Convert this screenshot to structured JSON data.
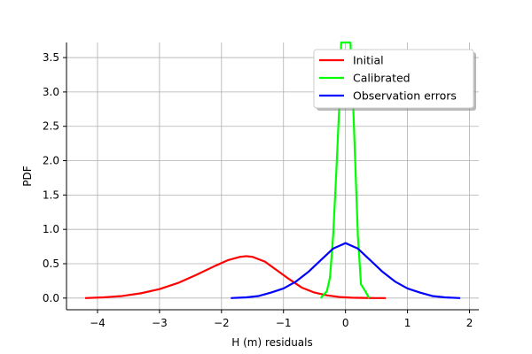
{
  "chart_data": {
    "type": "line",
    "title": "",
    "xlabel": "H (m) residuals",
    "ylabel": "PDF",
    "xlim": [
      -4.5,
      2.15
    ],
    "ylim": [
      -0.17,
      3.72
    ],
    "xticks": [
      -4,
      -3,
      -2,
      -1,
      0,
      1,
      2
    ],
    "yticks": [
      0.0,
      0.5,
      1.0,
      1.5,
      2.0,
      2.5,
      3.0,
      3.5
    ],
    "xtick_labels": [
      "−4",
      "−3",
      "−2",
      "−1",
      "0",
      "1",
      "2"
    ],
    "ytick_labels": [
      "0.0",
      "0.5",
      "1.0",
      "1.5",
      "2.0",
      "2.5",
      "3.0",
      "3.5"
    ],
    "grid": true,
    "legend_position": "top-right",
    "series": [
      {
        "name": "Initial",
        "color": "#ff0000",
        "x": [
          -4.2,
          -3.9,
          -3.6,
          -3.3,
          -3.0,
          -2.7,
          -2.4,
          -2.1,
          -1.9,
          -1.7,
          -1.6,
          -1.5,
          -1.3,
          -1.1,
          -0.9,
          -0.7,
          -0.5,
          -0.3,
          -0.1,
          0.1,
          0.3,
          0.5,
          0.65
        ],
        "y": [
          0.0,
          0.01,
          0.03,
          0.07,
          0.13,
          0.22,
          0.34,
          0.47,
          0.55,
          0.6,
          0.61,
          0.6,
          0.53,
          0.4,
          0.27,
          0.15,
          0.08,
          0.04,
          0.015,
          0.005,
          0.002,
          0.0,
          0.0
        ]
      },
      {
        "name": "Calibrated",
        "color": "#00ff00",
        "x": [
          -0.4,
          -0.3,
          -0.25,
          -0.2,
          -0.15,
          -0.1,
          -0.07,
          -0.04,
          0.0,
          0.04,
          0.08,
          0.12,
          0.16,
          0.2,
          0.25,
          0.32,
          0.38
        ],
        "y": [
          0.0,
          0.1,
          0.3,
          0.9,
          1.8,
          2.8,
          3.72,
          3.72,
          3.72,
          3.72,
          3.72,
          2.9,
          1.9,
          0.9,
          0.2,
          0.1,
          0.0
        ]
      },
      {
        "name": "Observation errors",
        "color": "#0000ff",
        "x": [
          -1.85,
          -1.6,
          -1.4,
          -1.2,
          -1.0,
          -0.8,
          -0.6,
          -0.4,
          -0.2,
          0.0,
          0.2,
          0.4,
          0.6,
          0.8,
          1.0,
          1.2,
          1.4,
          1.6,
          1.85
        ],
        "y": [
          0.0,
          0.01,
          0.03,
          0.08,
          0.14,
          0.24,
          0.38,
          0.55,
          0.72,
          0.8,
          0.72,
          0.55,
          0.38,
          0.24,
          0.14,
          0.08,
          0.03,
          0.01,
          0.0
        ]
      }
    ]
  }
}
